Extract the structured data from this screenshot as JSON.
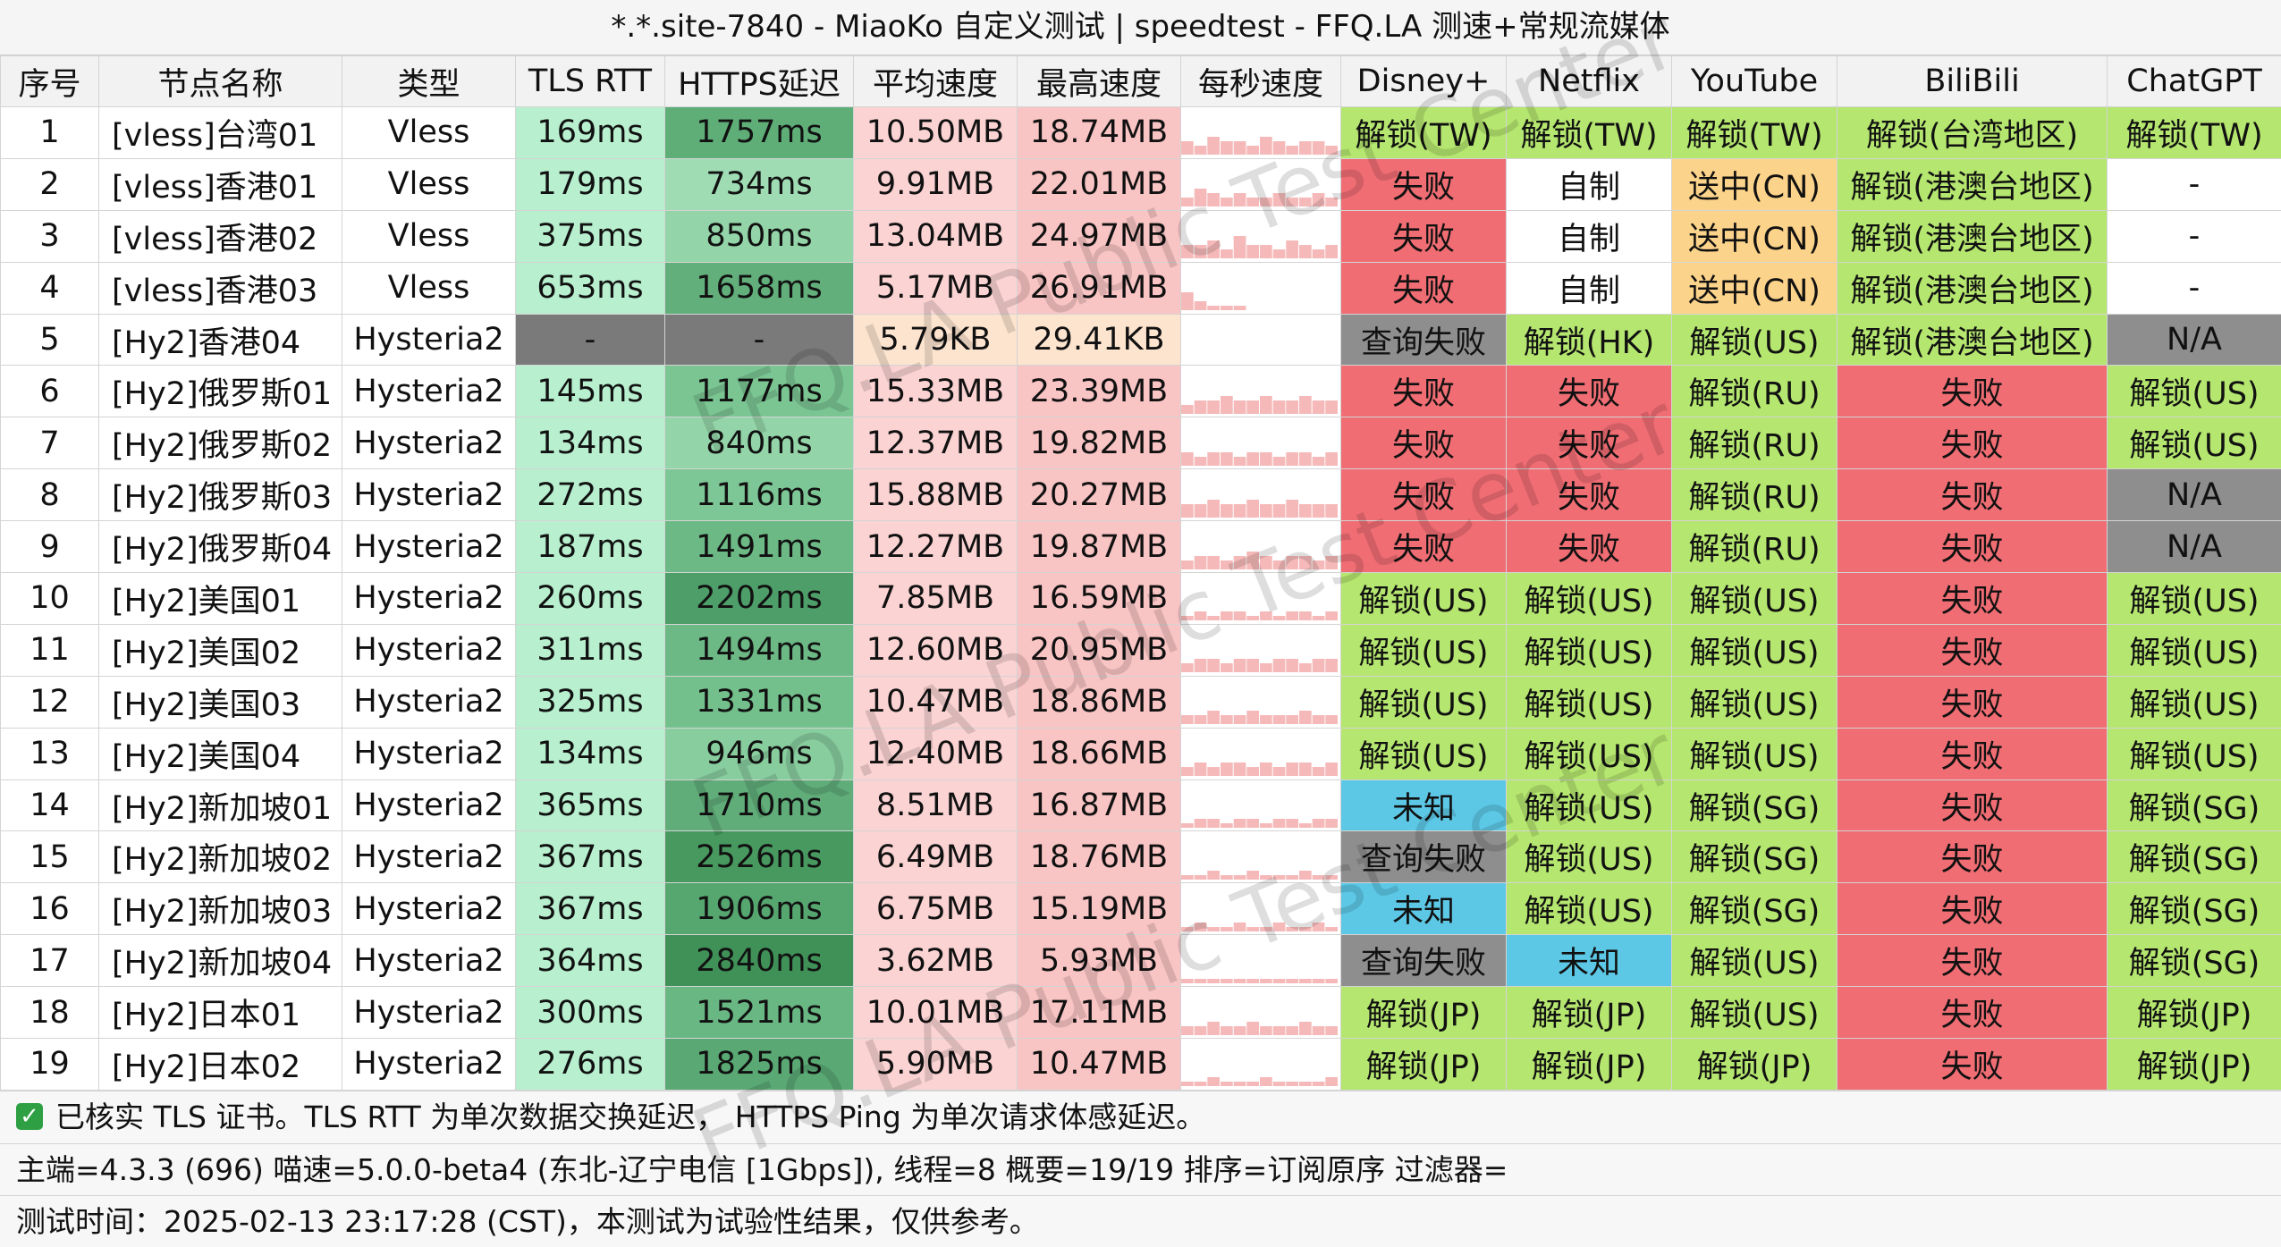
{
  "title": "*.*.site-7840 - MiaoKo 自定义测试 | speedtest - FFQ.LA 测速+常规流媒体",
  "headers": [
    "序号",
    "节点名称",
    "类型",
    "TLS RTT",
    "HTTPS延迟",
    "平均速度",
    "最高速度",
    "每秒速度",
    "Disney+",
    "Netflix",
    "YouTube",
    "BiliBili",
    "ChatGPT"
  ],
  "rows": [
    {
      "no": "1",
      "name": "[vless]台湾01",
      "type": "Vless",
      "rtt": "169ms",
      "https": "1757ms",
      "avg": "10.50MB",
      "max": "18.74MB",
      "disney": "解锁(TW)",
      "netflix": "解锁(TW)",
      "youtube": "解锁(TW)",
      "bili": "解锁(台湾地区)",
      "gpt": "解锁(TW)",
      "spark": [
        3,
        2,
        4,
        3,
        3,
        2,
        4,
        3,
        2,
        3,
        3,
        2
      ],
      "rttColor": "#b8f0cf",
      "httpsColor": "#5fae78",
      "avgColor": "#fbd3d3",
      "maxColor": "#f9c4c4",
      "disneyColor": "#b5e66f",
      "netflixColor": "#b5e66f",
      "youtubeColor": "#b5e66f",
      "biliColor": "#b5e66f",
      "gptColor": "#b5e66f"
    },
    {
      "no": "2",
      "name": "[vless]香港01",
      "type": "Vless",
      "rtt": "179ms",
      "https": "734ms",
      "avg": "9.91MB",
      "max": "22.01MB",
      "disney": "失败",
      "netflix": "自制",
      "youtube": "送中(CN)",
      "bili": "解锁(港澳台地区)",
      "gpt": "-",
      "spark": [
        2,
        4,
        3,
        2,
        3,
        2,
        2,
        3,
        2,
        2,
        3,
        2
      ],
      "rttColor": "#b8f0cf",
      "httpsColor": "#9fdcb4",
      "avgColor": "#fbd3d3",
      "maxColor": "#f9c4c4",
      "disneyColor": "#ef6d73",
      "netflixColor": "#ffffff",
      "youtubeColor": "#fcd38a",
      "biliColor": "#b5e66f",
      "gptColor": "#ffffff"
    },
    {
      "no": "3",
      "name": "[vless]香港02",
      "type": "Vless",
      "rtt": "375ms",
      "https": "850ms",
      "avg": "13.04MB",
      "max": "24.97MB",
      "disney": "失败",
      "netflix": "自制",
      "youtube": "送中(CN)",
      "bili": "解锁(港澳台地区)",
      "gpt": "-",
      "spark": [
        3,
        3,
        4,
        2,
        5,
        3,
        3,
        2,
        4,
        3,
        2,
        3
      ],
      "rttColor": "#b8f0cf",
      "httpsColor": "#93d5a8",
      "avgColor": "#fbd3d3",
      "maxColor": "#f9c4c4",
      "disneyColor": "#ef6d73",
      "netflixColor": "#ffffff",
      "youtubeColor": "#fcd38a",
      "biliColor": "#b5e66f",
      "gptColor": "#ffffff"
    },
    {
      "no": "4",
      "name": "[vless]香港03",
      "type": "Vless",
      "rtt": "653ms",
      "https": "1658ms",
      "avg": "5.17MB",
      "max": "26.91MB",
      "disney": "失败",
      "netflix": "自制",
      "youtube": "送中(CN)",
      "bili": "解锁(港澳台地区)",
      "gpt": "-",
      "spark": [
        4,
        2,
        1,
        1,
        1,
        0,
        0,
        0,
        0,
        0,
        0,
        0
      ],
      "rttColor": "#b8f0cf",
      "httpsColor": "#62af7b",
      "avgColor": "#fbd3d3",
      "maxColor": "#f9c4c4",
      "disneyColor": "#ef6d73",
      "netflixColor": "#ffffff",
      "youtubeColor": "#fcd38a",
      "biliColor": "#b5e66f",
      "gptColor": "#ffffff"
    },
    {
      "no": "5",
      "name": "[Hy2]香港04",
      "type": "Hysteria2",
      "rtt": "-",
      "https": "-",
      "avg": "5.79KB",
      "max": "29.41KB",
      "disney": "查询失败",
      "netflix": "解锁(HK)",
      "youtube": "解锁(US)",
      "bili": "解锁(港澳台地区)",
      "gpt": "N/A",
      "spark": [
        0,
        0,
        0,
        0,
        0,
        0,
        0,
        0,
        0,
        0,
        0,
        0
      ],
      "rttColor": "#7a7a7a",
      "httpsColor": "#7a7a7a",
      "avgColor": "#fde4cf",
      "maxColor": "#fde4cf",
      "disneyColor": "#8e8e8e",
      "netflixColor": "#b5e66f",
      "youtubeColor": "#b5e66f",
      "biliColor": "#b5e66f",
      "gptColor": "#8e8e8e"
    },
    {
      "no": "6",
      "name": "[Hy2]俄罗斯01",
      "type": "Hysteria2",
      "rtt": "145ms",
      "https": "1177ms",
      "avg": "15.33MB",
      "max": "23.39MB",
      "disney": "失败",
      "netflix": "失败",
      "youtube": "解锁(RU)",
      "bili": "失败",
      "gpt": "解锁(US)",
      "spark": [
        2,
        3,
        3,
        4,
        3,
        3,
        4,
        3,
        3,
        4,
        3,
        3
      ],
      "rttColor": "#b8f0cf",
      "httpsColor": "#7ac592",
      "avgColor": "#fbd3d3",
      "maxColor": "#f9c4c4",
      "disneyColor": "#ef6d73",
      "netflixColor": "#ef6d73",
      "youtubeColor": "#b5e66f",
      "biliColor": "#ef6d73",
      "gptColor": "#b5e66f"
    },
    {
      "no": "7",
      "name": "[Hy2]俄罗斯02",
      "type": "Hysteria2",
      "rtt": "134ms",
      "https": "840ms",
      "avg": "12.37MB",
      "max": "19.82MB",
      "disney": "失败",
      "netflix": "失败",
      "youtube": "解锁(RU)",
      "bili": "失败",
      "gpt": "解锁(US)",
      "spark": [
        3,
        2,
        3,
        3,
        2,
        3,
        3,
        2,
        3,
        3,
        2,
        3
      ],
      "rttColor": "#b8f0cf",
      "httpsColor": "#93d5a8",
      "avgColor": "#fbd3d3",
      "maxColor": "#f9c4c4",
      "disneyColor": "#ef6d73",
      "netflixColor": "#ef6d73",
      "youtubeColor": "#b5e66f",
      "biliColor": "#ef6d73",
      "gptColor": "#b5e66f"
    },
    {
      "no": "8",
      "name": "[Hy2]俄罗斯03",
      "type": "Hysteria2",
      "rtt": "272ms",
      "https": "1116ms",
      "avg": "15.88MB",
      "max": "20.27MB",
      "disney": "失败",
      "netflix": "失败",
      "youtube": "解锁(RU)",
      "bili": "失败",
      "gpt": "N/A",
      "spark": [
        3,
        3,
        4,
        3,
        3,
        4,
        3,
        3,
        4,
        3,
        3,
        3
      ],
      "rttColor": "#b8f0cf",
      "httpsColor": "#7dc695",
      "avgColor": "#fbd3d3",
      "maxColor": "#f9c4c4",
      "disneyColor": "#ef6d73",
      "netflixColor": "#ef6d73",
      "youtubeColor": "#b5e66f",
      "biliColor": "#ef6d73",
      "gptColor": "#8e8e8e"
    },
    {
      "no": "9",
      "name": "[Hy2]俄罗斯04",
      "type": "Hysteria2",
      "rtt": "187ms",
      "https": "1491ms",
      "avg": "12.27MB",
      "max": "19.87MB",
      "disney": "失败",
      "netflix": "失败",
      "youtube": "解锁(RU)",
      "bili": "失败",
      "gpt": "N/A",
      "spark": [
        2,
        3,
        3,
        2,
        3,
        4,
        3,
        2,
        3,
        3,
        2,
        3
      ],
      "rttColor": "#b8f0cf",
      "httpsColor": "#6cb985",
      "avgColor": "#fbd3d3",
      "maxColor": "#f9c4c4",
      "disneyColor": "#ef6d73",
      "netflixColor": "#ef6d73",
      "youtubeColor": "#b5e66f",
      "biliColor": "#ef6d73",
      "gptColor": "#8e8e8e"
    },
    {
      "no": "10",
      "name": "[Hy2]美国01",
      "type": "Hysteria2",
      "rtt": "260ms",
      "https": "2202ms",
      "avg": "7.85MB",
      "max": "16.59MB",
      "disney": "解锁(US)",
      "netflix": "解锁(US)",
      "youtube": "解锁(US)",
      "bili": "失败",
      "gpt": "解锁(US)",
      "spark": [
        1,
        2,
        1,
        2,
        2,
        1,
        2,
        1,
        2,
        2,
        1,
        2
      ],
      "rttColor": "#b8f0cf",
      "httpsColor": "#4d9e68",
      "avgColor": "#fbd3d3",
      "maxColor": "#f9c4c4",
      "disneyColor": "#b5e66f",
      "netflixColor": "#b5e66f",
      "youtubeColor": "#b5e66f",
      "biliColor": "#ef6d73",
      "gptColor": "#b5e66f"
    },
    {
      "no": "11",
      "name": "[Hy2]美国02",
      "type": "Hysteria2",
      "rtt": "311ms",
      "https": "1494ms",
      "avg": "12.60MB",
      "max": "20.95MB",
      "disney": "解锁(US)",
      "netflix": "解锁(US)",
      "youtube": "解锁(US)",
      "bili": "失败",
      "gpt": "解锁(US)",
      "spark": [
        2,
        3,
        3,
        2,
        3,
        3,
        2,
        3,
        3,
        2,
        3,
        3
      ],
      "rttColor": "#b8f0cf",
      "httpsColor": "#6cb985",
      "avgColor": "#fbd3d3",
      "maxColor": "#f9c4c4",
      "disneyColor": "#b5e66f",
      "netflixColor": "#b5e66f",
      "youtubeColor": "#b5e66f",
      "biliColor": "#ef6d73",
      "gptColor": "#b5e66f"
    },
    {
      "no": "12",
      "name": "[Hy2]美国03",
      "type": "Hysteria2",
      "rtt": "325ms",
      "https": "1331ms",
      "avg": "10.47MB",
      "max": "18.86MB",
      "disney": "解锁(US)",
      "netflix": "解锁(US)",
      "youtube": "解锁(US)",
      "bili": "失败",
      "gpt": "解锁(US)",
      "spark": [
        2,
        2,
        3,
        2,
        2,
        3,
        2,
        2,
        2,
        3,
        2,
        2
      ],
      "rttColor": "#b8f0cf",
      "httpsColor": "#74c08c",
      "avgColor": "#fbd3d3",
      "maxColor": "#f9c4c4",
      "disneyColor": "#b5e66f",
      "netflixColor": "#b5e66f",
      "youtubeColor": "#b5e66f",
      "biliColor": "#ef6d73",
      "gptColor": "#b5e66f"
    },
    {
      "no": "13",
      "name": "[Hy2]美国04",
      "type": "Hysteria2",
      "rtt": "134ms",
      "https": "946ms",
      "avg": "12.40MB",
      "max": "18.66MB",
      "disney": "解锁(US)",
      "netflix": "解锁(US)",
      "youtube": "解锁(US)",
      "bili": "失败",
      "gpt": "解锁(US)",
      "spark": [
        2,
        3,
        2,
        3,
        3,
        2,
        3,
        2,
        3,
        3,
        2,
        3
      ],
      "rttColor": "#b8f0cf",
      "httpsColor": "#88cd9e",
      "avgColor": "#fbd3d3",
      "maxColor": "#f9c4c4",
      "disneyColor": "#b5e66f",
      "netflixColor": "#b5e66f",
      "youtubeColor": "#b5e66f",
      "biliColor": "#ef6d73",
      "gptColor": "#b5e66f"
    },
    {
      "no": "14",
      "name": "[Hy2]新加坡01",
      "type": "Hysteria2",
      "rtt": "365ms",
      "https": "1710ms",
      "avg": "8.51MB",
      "max": "16.87MB",
      "disney": "未知",
      "netflix": "解锁(US)",
      "youtube": "解锁(SG)",
      "bili": "失败",
      "gpt": "解锁(SG)",
      "spark": [
        1,
        2,
        2,
        1,
        2,
        2,
        1,
        2,
        2,
        1,
        2,
        2
      ],
      "rttColor": "#b8f0cf",
      "httpsColor": "#60ad79",
      "avgColor": "#fbd3d3",
      "maxColor": "#f9c4c4",
      "disneyColor": "#5cc8e6",
      "netflixColor": "#b5e66f",
      "youtubeColor": "#b5e66f",
      "biliColor": "#ef6d73",
      "gptColor": "#b5e66f"
    },
    {
      "no": "15",
      "name": "[Hy2]新加坡02",
      "type": "Hysteria2",
      "rtt": "367ms",
      "https": "2526ms",
      "avg": "6.49MB",
      "max": "18.76MB",
      "disney": "查询失败",
      "netflix": "解锁(US)",
      "youtube": "解锁(SG)",
      "bili": "失败",
      "gpt": "解锁(SG)",
      "spark": [
        1,
        1,
        2,
        1,
        1,
        2,
        1,
        1,
        1,
        2,
        1,
        1
      ],
      "rttColor": "#b8f0cf",
      "httpsColor": "#47995f",
      "avgColor": "#fbd3d3",
      "maxColor": "#f9c4c4",
      "disneyColor": "#8e8e8e",
      "netflixColor": "#b5e66f",
      "youtubeColor": "#b5e66f",
      "biliColor": "#ef6d73",
      "gptColor": "#b5e66f"
    },
    {
      "no": "16",
      "name": "[Hy2]新加坡03",
      "type": "Hysteria2",
      "rtt": "367ms",
      "https": "1906ms",
      "avg": "6.75MB",
      "max": "15.19MB",
      "disney": "未知",
      "netflix": "解锁(US)",
      "youtube": "解锁(SG)",
      "bili": "失败",
      "gpt": "解锁(SG)",
      "spark": [
        1,
        2,
        1,
        1,
        2,
        1,
        1,
        2,
        1,
        1,
        2,
        1
      ],
      "rttColor": "#b8f0cf",
      "httpsColor": "#56a670",
      "avgColor": "#fbd3d3",
      "maxColor": "#f9c4c4",
      "disneyColor": "#5cc8e6",
      "netflixColor": "#b5e66f",
      "youtubeColor": "#b5e66f",
      "biliColor": "#ef6d73",
      "gptColor": "#b5e66f"
    },
    {
      "no": "17",
      "name": "[Hy2]新加坡04",
      "type": "Hysteria2",
      "rtt": "364ms",
      "https": "2840ms",
      "avg": "3.62MB",
      "max": "5.93MB",
      "disney": "查询失败",
      "netflix": "未知",
      "youtube": "解锁(US)",
      "bili": "失败",
      "gpt": "解锁(SG)",
      "spark": [
        1,
        1,
        1,
        1,
        1,
        1,
        1,
        1,
        1,
        1,
        1,
        1
      ],
      "rttColor": "#b8f0cf",
      "httpsColor": "#3f9158",
      "avgColor": "#fbd3d3",
      "maxColor": "#f9c4c4",
      "disneyColor": "#8e8e8e",
      "netflixColor": "#5cc8e6",
      "youtubeColor": "#b5e66f",
      "biliColor": "#ef6d73",
      "gptColor": "#b5e66f"
    },
    {
      "no": "18",
      "name": "[Hy2]日本01",
      "type": "Hysteria2",
      "rtt": "300ms",
      "https": "1521ms",
      "avg": "10.01MB",
      "max": "17.11MB",
      "disney": "解锁(JP)",
      "netflix": "解锁(JP)",
      "youtube": "解锁(US)",
      "bili": "失败",
      "gpt": "解锁(JP)",
      "spark": [
        2,
        2,
        3,
        2,
        2,
        3,
        2,
        2,
        2,
        3,
        2,
        2
      ],
      "rttColor": "#b8f0cf",
      "httpsColor": "#69b783",
      "avgColor": "#fbd3d3",
      "maxColor": "#f9c4c4",
      "disneyColor": "#b5e66f",
      "netflixColor": "#b5e66f",
      "youtubeColor": "#b5e66f",
      "biliColor": "#ef6d73",
      "gptColor": "#b5e66f"
    },
    {
      "no": "19",
      "name": "[Hy2]日本02",
      "type": "Hysteria2",
      "rtt": "276ms",
      "https": "1825ms",
      "avg": "5.90MB",
      "max": "10.47MB",
      "disney": "解锁(JP)",
      "netflix": "解锁(JP)",
      "youtube": "解锁(JP)",
      "bili": "失败",
      "gpt": "解锁(JP)",
      "spark": [
        1,
        1,
        2,
        1,
        1,
        1,
        2,
        1,
        1,
        1,
        1,
        2
      ],
      "rttColor": "#b8f0cf",
      "httpsColor": "#5aa974",
      "avgColor": "#fbd3d3",
      "maxColor": "#f9c4c4",
      "disneyColor": "#b5e66f",
      "netflixColor": "#b5e66f",
      "youtubeColor": "#b5e66f",
      "biliColor": "#ef6d73",
      "gptColor": "#b5e66f"
    }
  ],
  "footer": {
    "line1": "已核实 TLS 证书。TLS RTT 为单次数据交换延迟， HTTPS Ping 为单次请求体感延迟。",
    "line2": "主端=4.3.3 (696) 喵速=5.0.0-beta4 (东北-辽宁电信 [1Gbps]), 线程=8 概要=19/19 排序=订阅原序 过滤器=",
    "line3": "测试时间：2025-02-13 23:17:28 (CST)，本测试为试验性结果，仅供参考。",
    "check_icon": "✓"
  },
  "watermark": "FFQ.LA Public Test Center"
}
